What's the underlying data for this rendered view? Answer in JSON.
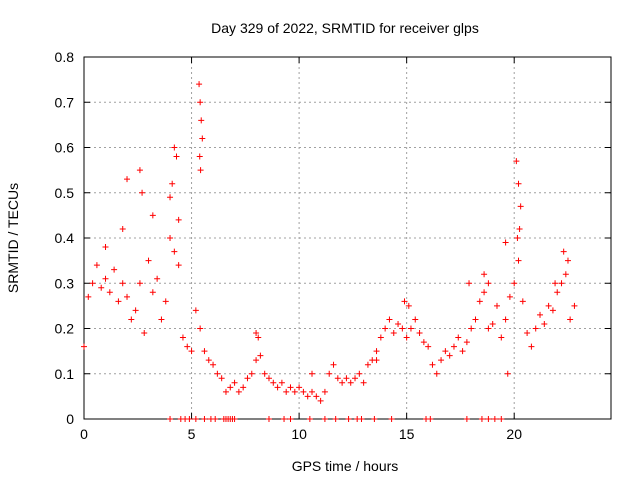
{
  "colors": {
    "series": "#ff0000",
    "grid": "#a0a0a0",
    "axis": "#000000",
    "background": "#ffffff"
  },
  "chart_data": {
    "type": "scatter",
    "title": "Day 329 of 2022, SRMTID for receiver glps",
    "xlabel": "GPS time / hours",
    "ylabel": "SRMTID / TECUs",
    "xlim": [
      0,
      24.5
    ],
    "ylim": [
      0,
      0.8
    ],
    "xticks": [
      0,
      5,
      10,
      15,
      20
    ],
    "xtick_labels": [
      "0",
      "5",
      "10",
      "15",
      "20"
    ],
    "yticks": [
      0,
      0.1,
      0.2,
      0.3,
      0.4,
      0.5,
      0.6,
      0.7,
      0.8
    ],
    "ytick_labels": [
      "0",
      "0.1",
      "0.2",
      "0.3",
      "0.4",
      "0.5",
      "0.6",
      "0.7",
      "0.8"
    ],
    "grid": true,
    "marker": "+",
    "series": [
      {
        "name": "SRMTID",
        "x": [
          0.0,
          0.2,
          0.4,
          0.6,
          0.8,
          1.0,
          1.2,
          1.4,
          1.6,
          1.8,
          2.0,
          2.2,
          2.4,
          2.6,
          2.8,
          3.0,
          3.2,
          3.4,
          3.6,
          3.8,
          4.0,
          4.2,
          4.4,
          4.6,
          4.8,
          5.0,
          5.2,
          5.4,
          5.6,
          5.8,
          6.0,
          6.2,
          6.4,
          6.6,
          6.8,
          7.0,
          7.2,
          7.4,
          7.6,
          7.8,
          8.0,
          8.2,
          8.4,
          8.6,
          8.8,
          9.0,
          9.2,
          9.4,
          9.6,
          9.8,
          10.0,
          10.2,
          10.4,
          10.6,
          10.8,
          11.0,
          11.2,
          11.4,
          11.6,
          11.8,
          12.0,
          12.2,
          12.4,
          12.6,
          12.8,
          13.0,
          13.2,
          13.4,
          13.6,
          13.8,
          14.0,
          14.2,
          14.4,
          14.6,
          14.8,
          15.0,
          15.2,
          15.4,
          15.6,
          15.8,
          16.0,
          16.2,
          16.4,
          16.6,
          16.8,
          17.0,
          17.2,
          17.4,
          17.6,
          17.8,
          18.0,
          18.2,
          18.4,
          18.6,
          18.8,
          19.0,
          19.2,
          19.4,
          19.6,
          19.8,
          20.0,
          20.2,
          20.4,
          20.6,
          20.8,
          21.0,
          21.2,
          21.4,
          21.6,
          21.8,
          22.0,
          22.2,
          22.4,
          22.6,
          22.8,
          4.1,
          4.2,
          4.3,
          2.6,
          2.7,
          5.35,
          5.4,
          5.45,
          5.5,
          5.38,
          5.42,
          20.1,
          20.2,
          20.3,
          20.25,
          20.15,
          1.0,
          1.8,
          2.0,
          3.2,
          4.0,
          4.4,
          8.0,
          8.1,
          10.6,
          13.6,
          14.9,
          15.1,
          17.9,
          18.6,
          18.8,
          19.6,
          19.7,
          21.9,
          22.3,
          22.5,
          4.0,
          4.5,
          4.7,
          4.9,
          5.2,
          5.6,
          5.9,
          6.1,
          6.5,
          6.6,
          6.7,
          6.8,
          6.9,
          7.0,
          8.6,
          9.3,
          9.6,
          10.5,
          11.2,
          11.7,
          12.3,
          12.7,
          12.9,
          13.5,
          14.3,
          15.9,
          16.1,
          17.8,
          18.5,
          18.8,
          19.1,
          19.4
        ],
        "y": [
          0.16,
          0.27,
          0.3,
          0.34,
          0.29,
          0.31,
          0.28,
          0.33,
          0.26,
          0.3,
          0.27,
          0.22,
          0.24,
          0.3,
          0.19,
          0.35,
          0.28,
          0.31,
          0.22,
          0.26,
          0.4,
          0.37,
          0.34,
          0.18,
          0.16,
          0.15,
          0.24,
          0.2,
          0.15,
          0.13,
          0.12,
          0.1,
          0.09,
          0.06,
          0.07,
          0.08,
          0.06,
          0.07,
          0.09,
          0.1,
          0.13,
          0.14,
          0.1,
          0.09,
          0.08,
          0.07,
          0.08,
          0.06,
          0.07,
          0.06,
          0.07,
          0.06,
          0.05,
          0.06,
          0.05,
          0.04,
          0.06,
          0.1,
          0.12,
          0.09,
          0.08,
          0.09,
          0.08,
          0.09,
          0.1,
          0.08,
          0.12,
          0.13,
          0.15,
          0.18,
          0.2,
          0.22,
          0.19,
          0.21,
          0.2,
          0.18,
          0.2,
          0.22,
          0.19,
          0.17,
          0.16,
          0.12,
          0.1,
          0.13,
          0.15,
          0.14,
          0.16,
          0.18,
          0.15,
          0.17,
          0.2,
          0.22,
          0.26,
          0.28,
          0.2,
          0.21,
          0.25,
          0.18,
          0.22,
          0.27,
          0.3,
          0.35,
          0.26,
          0.19,
          0.16,
          0.2,
          0.23,
          0.21,
          0.25,
          0.24,
          0.28,
          0.3,
          0.32,
          0.22,
          0.25,
          0.52,
          0.6,
          0.58,
          0.55,
          0.5,
          0.74,
          0.7,
          0.66,
          0.62,
          0.58,
          0.55,
          0.57,
          0.52,
          0.47,
          0.42,
          0.4,
          0.38,
          0.42,
          0.53,
          0.45,
          0.49,
          0.44,
          0.19,
          0.18,
          0.1,
          0.13,
          0.26,
          0.25,
          0.3,
          0.32,
          0.3,
          0.39,
          0.1,
          0.3,
          0.37,
          0.35,
          0.0,
          0.0,
          0.0,
          0.0,
          0.0,
          0.0,
          0.0,
          0.0,
          0.0,
          0.0,
          0.0,
          0.0,
          0.0,
          0.0,
          0.0,
          0.0,
          0.0,
          0.0,
          0.0,
          0.0,
          0.0,
          0.0,
          0.0,
          0.0,
          0.0,
          0.0,
          0.0,
          0.0,
          0.0,
          0.0,
          0.0,
          0.0
        ]
      }
    ]
  }
}
